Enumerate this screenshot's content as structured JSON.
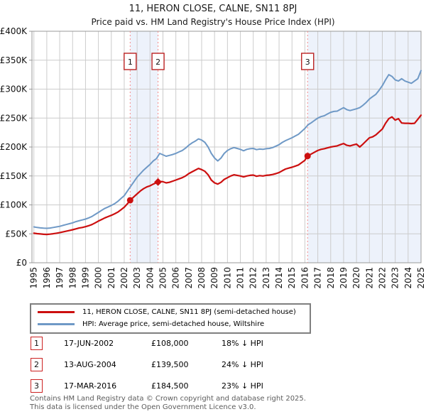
{
  "title": "11, HERON CLOSE, CALNE, SN11 8PJ",
  "subtitle": "Price paid vs. HM Land Registry's House Price Index (HPI)",
  "chart_data": {
    "type": "line",
    "unit": "GBP_thousands",
    "xlim": [
      1994.85,
      2025.0
    ],
    "ylim": [
      0,
      400
    ],
    "grid": true,
    "legend_position": "bottom",
    "colors": {
      "property": "#cc0f0f",
      "hpi": "#6f99c6",
      "dashed": "#f48a8a",
      "band": "#edf2fb",
      "grid": "#cccccc",
      "spine": "#999999",
      "marker_box": "#bb2222"
    },
    "x_ticks": [
      1995,
      1996,
      1997,
      1998,
      1999,
      2000,
      2001,
      2002,
      2003,
      2004,
      2005,
      2006,
      2007,
      2008,
      2009,
      2010,
      2011,
      2012,
      2013,
      2014,
      2015,
      2016,
      2017,
      2018,
      2019,
      2020,
      2021,
      2022,
      2023,
      2024,
      2025
    ],
    "y_ticks": [
      {
        "label": "£0",
        "value": 0
      },
      {
        "label": "£50K",
        "value": 50
      },
      {
        "label": "£100K",
        "value": 100
      },
      {
        "label": "£150K",
        "value": 150
      },
      {
        "label": "£200K",
        "value": 200
      },
      {
        "label": "£250K",
        "value": 250
      },
      {
        "label": "£300K",
        "value": 300
      },
      {
        "label": "£350K",
        "value": 350
      },
      {
        "label": "£400K",
        "value": 400
      }
    ],
    "bands": [
      [
        2002.46,
        2004.62
      ],
      [
        2016.21,
        2025.0
      ]
    ],
    "markers": [
      {
        "label": "1",
        "x": 2002.46,
        "y": 108,
        "shape": "circle"
      },
      {
        "label": "2",
        "x": 2004.62,
        "y": 139.5,
        "shape": "diamond"
      },
      {
        "label": "3",
        "x": 2016.21,
        "y": 184.5,
        "shape": "circle"
      }
    ],
    "legend": [
      {
        "label": "11, HERON CLOSE, CALNE, SN11 8PJ (semi-detached house)",
        "series": "property"
      },
      {
        "label": "HPI: Average price, semi-detached house, Wiltshire",
        "series": "hpi"
      }
    ],
    "series": [
      {
        "name": "hpi",
        "color": "#6f99c6",
        "width": 2,
        "points": [
          [
            1995.0,
            62
          ],
          [
            1995.25,
            61
          ],
          [
            1995.5,
            60.3
          ],
          [
            1995.75,
            59.8
          ],
          [
            1996.0,
            59.5
          ],
          [
            1996.25,
            60
          ],
          [
            1996.5,
            61
          ],
          [
            1996.75,
            62
          ],
          [
            1997.0,
            63
          ],
          [
            1997.25,
            64.5
          ],
          [
            1997.5,
            66
          ],
          [
            1997.75,
            67.5
          ],
          [
            1998.0,
            69
          ],
          [
            1998.25,
            71
          ],
          [
            1998.5,
            72.5
          ],
          [
            1998.75,
            74
          ],
          [
            1999.0,
            75.5
          ],
          [
            1999.25,
            77.5
          ],
          [
            1999.5,
            80
          ],
          [
            1999.75,
            83.5
          ],
          [
            2000.0,
            87
          ],
          [
            2000.25,
            90.5
          ],
          [
            2000.5,
            94
          ],
          [
            2000.75,
            96.5
          ],
          [
            2001.0,
            99
          ],
          [
            2001.25,
            102
          ],
          [
            2001.5,
            106
          ],
          [
            2001.75,
            111
          ],
          [
            2002.0,
            116
          ],
          [
            2002.25,
            124
          ],
          [
            2002.5,
            132
          ],
          [
            2002.75,
            140
          ],
          [
            2003.0,
            148
          ],
          [
            2003.25,
            154
          ],
          [
            2003.5,
            160
          ],
          [
            2003.75,
            165
          ],
          [
            2004.0,
            170
          ],
          [
            2004.25,
            176
          ],
          [
            2004.5,
            180
          ],
          [
            2004.75,
            189
          ],
          [
            2005.0,
            186.5
          ],
          [
            2005.25,
            184
          ],
          [
            2005.5,
            185.5
          ],
          [
            2005.75,
            187
          ],
          [
            2006.0,
            189
          ],
          [
            2006.25,
            191.5
          ],
          [
            2006.5,
            194
          ],
          [
            2006.75,
            198
          ],
          [
            2007.0,
            203
          ],
          [
            2007.25,
            207
          ],
          [
            2007.5,
            210
          ],
          [
            2007.75,
            214
          ],
          [
            2008.0,
            212
          ],
          [
            2008.25,
            208
          ],
          [
            2008.5,
            200
          ],
          [
            2008.75,
            189
          ],
          [
            2009.0,
            181
          ],
          [
            2009.25,
            176
          ],
          [
            2009.5,
            181
          ],
          [
            2009.75,
            189
          ],
          [
            2010.0,
            194
          ],
          [
            2010.25,
            197
          ],
          [
            2010.5,
            199
          ],
          [
            2010.75,
            197.5
          ],
          [
            2011.0,
            196
          ],
          [
            2011.25,
            193.5
          ],
          [
            2011.5,
            196
          ],
          [
            2011.75,
            197
          ],
          [
            2012.0,
            197.5
          ],
          [
            2012.25,
            195.5
          ],
          [
            2012.5,
            196.5
          ],
          [
            2012.75,
            196
          ],
          [
            2013.0,
            197
          ],
          [
            2013.25,
            197.5
          ],
          [
            2013.5,
            199
          ],
          [
            2013.75,
            201.5
          ],
          [
            2014.0,
            204
          ],
          [
            2014.25,
            208
          ],
          [
            2014.5,
            211
          ],
          [
            2014.75,
            213.5
          ],
          [
            2015.0,
            216
          ],
          [
            2015.25,
            219
          ],
          [
            2015.5,
            222
          ],
          [
            2015.75,
            227
          ],
          [
            2016.0,
            232
          ],
          [
            2016.25,
            238.5
          ],
          [
            2016.5,
            242
          ],
          [
            2016.75,
            246
          ],
          [
            2017.0,
            250
          ],
          [
            2017.25,
            252.5
          ],
          [
            2017.5,
            254
          ],
          [
            2017.75,
            257
          ],
          [
            2018.0,
            260
          ],
          [
            2018.25,
            261.5
          ],
          [
            2018.5,
            262
          ],
          [
            2018.75,
            265
          ],
          [
            2019.0,
            268
          ],
          [
            2019.25,
            264.5
          ],
          [
            2019.5,
            263
          ],
          [
            2019.75,
            264.5
          ],
          [
            2020.0,
            266
          ],
          [
            2020.25,
            268
          ],
          [
            2020.5,
            272
          ],
          [
            2020.75,
            277
          ],
          [
            2021.0,
            283
          ],
          [
            2021.25,
            287
          ],
          [
            2021.5,
            291
          ],
          [
            2021.75,
            298
          ],
          [
            2022.0,
            306
          ],
          [
            2022.25,
            316
          ],
          [
            2022.5,
            325
          ],
          [
            2022.75,
            322
          ],
          [
            2023.0,
            316
          ],
          [
            2023.25,
            314
          ],
          [
            2023.5,
            318
          ],
          [
            2023.75,
            314
          ],
          [
            2024.0,
            312
          ],
          [
            2024.25,
            310
          ],
          [
            2024.5,
            314
          ],
          [
            2024.75,
            318
          ],
          [
            2025.0,
            332
          ]
        ]
      },
      {
        "name": "property",
        "color": "#cc0f0f",
        "width": 2.2,
        "points": [
          [
            1995.0,
            51
          ],
          [
            1995.25,
            50.3
          ],
          [
            1995.5,
            49.8
          ],
          [
            1995.75,
            49.2
          ],
          [
            1996.0,
            49
          ],
          [
            1996.25,
            49.4
          ],
          [
            1996.5,
            50.2
          ],
          [
            1996.75,
            51
          ],
          [
            1997.0,
            52
          ],
          [
            1997.25,
            53.2
          ],
          [
            1997.5,
            54.5
          ],
          [
            1997.75,
            55.7
          ],
          [
            1998.0,
            57
          ],
          [
            1998.25,
            58.5
          ],
          [
            1998.5,
            60
          ],
          [
            1998.75,
            61
          ],
          [
            1999.0,
            62.3
          ],
          [
            1999.25,
            64
          ],
          [
            1999.5,
            66
          ],
          [
            1999.75,
            69
          ],
          [
            2000.0,
            72
          ],
          [
            2000.25,
            74.7
          ],
          [
            2000.5,
            77.5
          ],
          [
            2000.75,
            79.7
          ],
          [
            2001.0,
            82
          ],
          [
            2001.25,
            84.5
          ],
          [
            2001.5,
            87.5
          ],
          [
            2001.75,
            91.5
          ],
          [
            2002.0,
            96
          ],
          [
            2002.25,
            102
          ],
          [
            2002.46,
            108
          ],
          [
            2002.75,
            114
          ],
          [
            2003.0,
            119
          ],
          [
            2003.25,
            124
          ],
          [
            2003.5,
            128
          ],
          [
            2003.75,
            131
          ],
          [
            2004.0,
            133
          ],
          [
            2004.25,
            136
          ],
          [
            2004.62,
            139.5
          ],
          [
            2004.75,
            140.5
          ],
          [
            2005.0,
            140
          ],
          [
            2005.25,
            138
          ],
          [
            2005.5,
            139
          ],
          [
            2005.75,
            141
          ],
          [
            2006.0,
            143
          ],
          [
            2006.25,
            145
          ],
          [
            2006.5,
            147
          ],
          [
            2006.75,
            150
          ],
          [
            2007.0,
            154
          ],
          [
            2007.25,
            157
          ],
          [
            2007.5,
            160
          ],
          [
            2007.75,
            163
          ],
          [
            2008.0,
            161
          ],
          [
            2008.25,
            158
          ],
          [
            2008.5,
            152
          ],
          [
            2008.75,
            143
          ],
          [
            2009.0,
            138
          ],
          [
            2009.25,
            136
          ],
          [
            2009.5,
            139
          ],
          [
            2009.75,
            144
          ],
          [
            2010.0,
            147
          ],
          [
            2010.25,
            150
          ],
          [
            2010.5,
            152
          ],
          [
            2010.75,
            151
          ],
          [
            2011.0,
            150
          ],
          [
            2011.25,
            148.5
          ],
          [
            2011.5,
            150
          ],
          [
            2011.75,
            151
          ],
          [
            2012.0,
            151.5
          ],
          [
            2012.25,
            149.5
          ],
          [
            2012.5,
            150.5
          ],
          [
            2012.75,
            150
          ],
          [
            2013.0,
            151
          ],
          [
            2013.25,
            151.5
          ],
          [
            2013.5,
            152.5
          ],
          [
            2013.75,
            154
          ],
          [
            2014.0,
            156
          ],
          [
            2014.25,
            159
          ],
          [
            2014.5,
            162
          ],
          [
            2014.75,
            163.5
          ],
          [
            2015.0,
            165
          ],
          [
            2015.25,
            167
          ],
          [
            2015.5,
            169
          ],
          [
            2015.75,
            173
          ],
          [
            2016.0,
            177
          ],
          [
            2016.21,
            184.5
          ],
          [
            2016.5,
            188
          ],
          [
            2016.75,
            191
          ],
          [
            2017.0,
            194
          ],
          [
            2017.25,
            196
          ],
          [
            2017.5,
            197
          ],
          [
            2017.75,
            198.5
          ],
          [
            2018.0,
            200
          ],
          [
            2018.25,
            201
          ],
          [
            2018.5,
            202
          ],
          [
            2018.75,
            204
          ],
          [
            2019.0,
            206
          ],
          [
            2019.25,
            203
          ],
          [
            2019.5,
            202
          ],
          [
            2019.75,
            203.5
          ],
          [
            2020.0,
            205
          ],
          [
            2020.25,
            200
          ],
          [
            2020.5,
            205
          ],
          [
            2020.75,
            210.5
          ],
          [
            2021.0,
            216
          ],
          [
            2021.25,
            217.5
          ],
          [
            2021.5,
            221
          ],
          [
            2021.75,
            226
          ],
          [
            2022.0,
            231
          ],
          [
            2022.25,
            241
          ],
          [
            2022.5,
            249
          ],
          [
            2022.75,
            252
          ],
          [
            2023.0,
            246.5
          ],
          [
            2023.25,
            249
          ],
          [
            2023.5,
            241.5
          ],
          [
            2023.75,
            241
          ],
          [
            2024.0,
            241
          ],
          [
            2024.25,
            240.5
          ],
          [
            2024.5,
            241
          ],
          [
            2024.75,
            248
          ],
          [
            2025.0,
            255
          ]
        ]
      }
    ]
  },
  "transactions": [
    {
      "num": "1",
      "date": "17-JUN-2002",
      "price": "£108,000",
      "vs_hpi": "18% ↓ HPI"
    },
    {
      "num": "2",
      "date": "13-AUG-2004",
      "price": "£139,500",
      "vs_hpi": "24% ↓ HPI"
    },
    {
      "num": "3",
      "date": "17-MAR-2016",
      "price": "£184,500",
      "vs_hpi": "23% ↓ HPI"
    }
  ],
  "footer": {
    "line1": "Contains HM Land Registry data © Crown copyright and database right 2025.",
    "line2": "This data is licensed under the Open Government Licence v3.0."
  }
}
